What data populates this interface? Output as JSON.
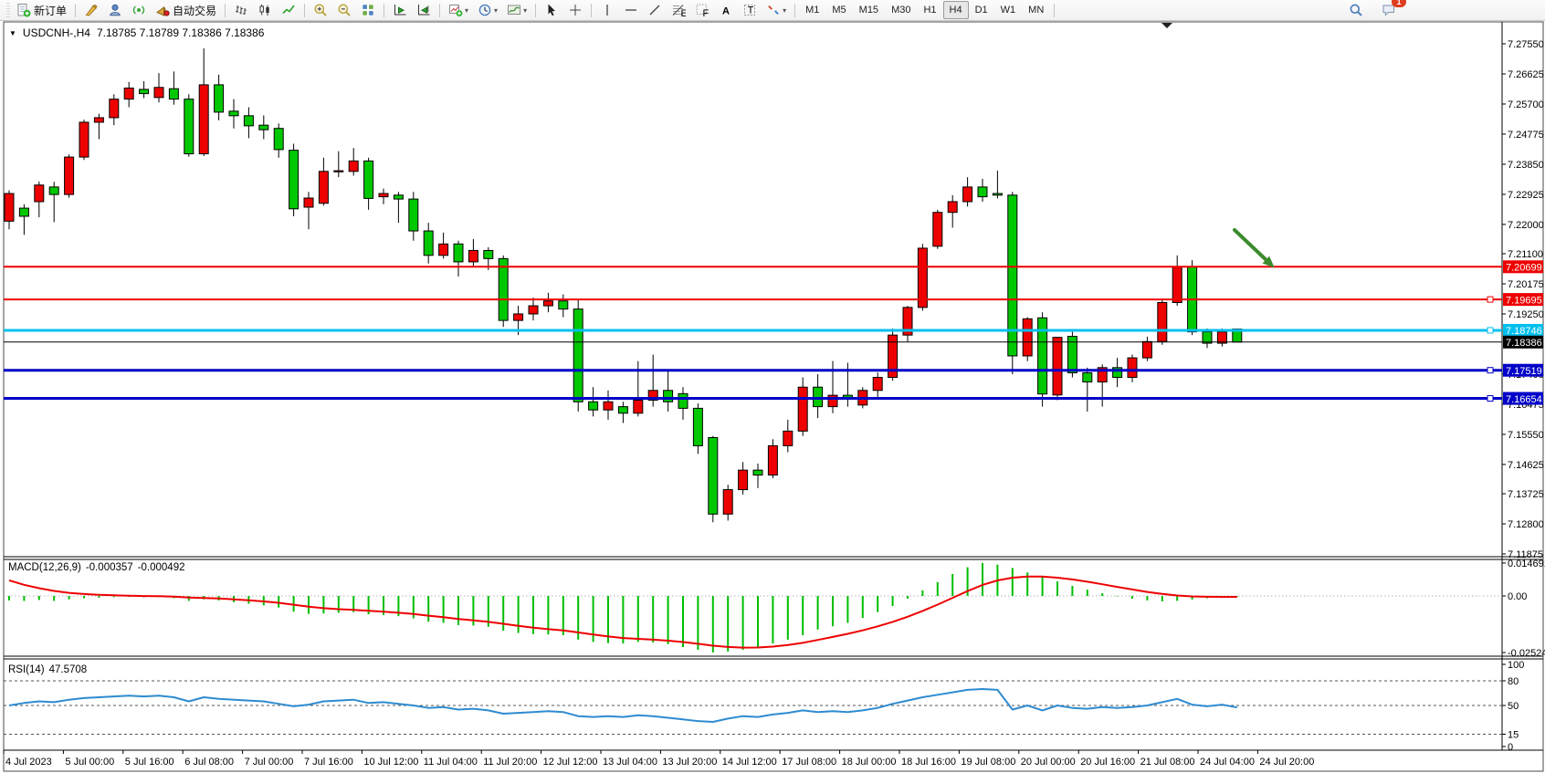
{
  "toolbar": {
    "groups": [
      {
        "items": [
          {
            "name": "new-order-button",
            "icon": "new-order-icon",
            "label": "新订单"
          }
        ]
      },
      {
        "items": [
          {
            "name": "metaeditor-button",
            "icon": "editor-icon"
          },
          {
            "name": "community-button",
            "icon": "community-icon"
          },
          {
            "name": "signals-button",
            "icon": "signals-icon"
          },
          {
            "name": "autotrading-button",
            "icon": "autotrading-icon",
            "label": "自动交易"
          }
        ]
      },
      {
        "items": [
          {
            "name": "bar-chart-button",
            "icon": "bar-chart-icon"
          },
          {
            "name": "candlestick-chart-button",
            "icon": "candles-icon"
          },
          {
            "name": "line-chart-button",
            "icon": "line-chart-icon"
          }
        ]
      },
      {
        "items": [
          {
            "name": "zoom-in-button",
            "icon": "zoom-in-icon"
          },
          {
            "name": "zoom-out-button",
            "icon": "zoom-out-icon"
          },
          {
            "name": "tile-windows-button",
            "icon": "tile-windows-icon"
          }
        ]
      },
      {
        "items": [
          {
            "name": "auto-scroll-button",
            "icon": "auto-scroll-icon"
          },
          {
            "name": "chart-shift-button",
            "icon": "chart-shift-icon"
          }
        ]
      },
      {
        "items": [
          {
            "name": "new-chart-button",
            "icon": "new-chart-icon",
            "dropdown": true
          },
          {
            "name": "periods-button",
            "icon": "clock-icon",
            "dropdown": true
          },
          {
            "name": "templates-button",
            "icon": "templates-icon",
            "dropdown": true
          }
        ]
      },
      {
        "items": [
          {
            "name": "cursor-button",
            "icon": "cursor-icon"
          },
          {
            "name": "crosshair-button",
            "icon": "crosshair-icon"
          }
        ]
      },
      {
        "items": [
          {
            "name": "vertical-line-button",
            "icon": "vline-icon"
          },
          {
            "name": "horizontal-line-button",
            "icon": "hline-icon"
          },
          {
            "name": "trendline-button",
            "icon": "trendline-icon"
          },
          {
            "name": "fibonacci-button",
            "icon": "fibonacci-icon"
          },
          {
            "name": "equidistant-grid-button",
            "icon": "grid-f-icon"
          },
          {
            "name": "text-button",
            "icon": "text-a-icon"
          },
          {
            "name": "text-label-button",
            "icon": "label-t-icon"
          },
          {
            "name": "arrows-button",
            "icon": "arrows-icon",
            "dropdown": true
          }
        ]
      }
    ],
    "timeframes": [
      "M1",
      "M5",
      "M15",
      "M30",
      "H1",
      "H4",
      "D1",
      "W1",
      "MN"
    ],
    "active_timeframe": "H4",
    "right_icons": [
      {
        "name": "search-button",
        "icon": "search-icon"
      },
      {
        "name": "chat-button",
        "icon": "chat-icon"
      }
    ],
    "notifications": "1"
  },
  "chart": {
    "title": "USDCNH-,H4",
    "ohlc_text": "7.18785 7.18789 7.18386 7.18386",
    "ohlc": {
      "open": "7.18785",
      "high": "7.18789",
      "low": "7.18386",
      "close": "7.18386"
    }
  },
  "chart_data": [
    {
      "type": "candlestick",
      "symbol": "USDCNH-",
      "timeframe": "H4",
      "bull_color": "#EE0000",
      "bear_color": "#00C800",
      "y_axis_ticks": [
        {
          "label": "7.27550",
          "price": 7.2755
        },
        {
          "label": "7.26625",
          "price": 7.26625
        },
        {
          "label": "7.25700",
          "price": 7.257
        },
        {
          "label": "7.24775",
          "price": 7.24775
        },
        {
          "label": "7.23850",
          "price": 7.2385
        },
        {
          "label": "7.22925",
          "price": 7.22925
        },
        {
          "label": "7.22000",
          "price": 7.22
        },
        {
          "label": "7.21100",
          "price": 7.211
        },
        {
          "label": "7.20175",
          "price": 7.20175
        },
        {
          "label": "7.19250",
          "price": 7.1925
        },
        {
          "label": "7.17400",
          "price": 7.174
        },
        {
          "label": "7.16475",
          "price": 7.16475
        },
        {
          "label": "7.15550",
          "price": 7.1555
        },
        {
          "label": "7.14625",
          "price": 7.14625
        },
        {
          "label": "7.13725",
          "price": 7.13725
        },
        {
          "label": "7.12800",
          "price": 7.128
        },
        {
          "label": "7.11875",
          "price": 7.11875
        }
      ],
      "x_axis_labels": [
        "4 Jul 2023",
        "5 Jul 00:00",
        "5 Jul 16:00",
        "6 Jul 08:00",
        "7 Jul 00:00",
        "7 Jul 16:00",
        "10 Jul 12:00",
        "11 Jul 04:00",
        "11 Jul 20:00",
        "12 Jul 12:00",
        "13 Jul 04:00",
        "13 Jul 20:00",
        "14 Jul 12:00",
        "17 Jul 08:00",
        "18 Jul 00:00",
        "18 Jul 16:00",
        "19 Jul 08:00",
        "20 Jul 00:00",
        "20 Jul 16:00",
        "21 Jul 08:00",
        "24 Jul 04:00",
        "24 Jul 20:00"
      ],
      "levels": [
        {
          "price": 7.20699,
          "badge": "7.20699",
          "color": "#EE0000",
          "width": 2,
          "handle": false
        },
        {
          "price": 7.19695,
          "badge": "7.19695",
          "color": "#EE0000",
          "width": 2,
          "handle": true
        },
        {
          "price": 7.18746,
          "badge": "7.18746",
          "color": "#00C0EE",
          "width": 3,
          "handle": true
        },
        {
          "price": 7.18386,
          "badge": "7.18386",
          "color": "#000000",
          "width": 1,
          "handle": false
        },
        {
          "price": 7.17519,
          "badge": "7.17519",
          "color": "#0000C8",
          "width": 3,
          "handle": true
        },
        {
          "price": 7.16654,
          "badge": "7.16654",
          "color": "#0000C8",
          "width": 3,
          "handle": true
        }
      ],
      "arrow_annotation": {
        "from": [
          1352,
          252
        ],
        "to": [
          1390,
          288
        ],
        "color": "#3C8B2E"
      },
      "candles": [
        [
          7.221,
          7.2305,
          7.2185,
          7.2295
        ],
        [
          7.225,
          7.2262,
          7.2168,
          7.2225
        ],
        [
          7.227,
          7.2332,
          7.2222,
          7.2321
        ],
        [
          7.2315,
          7.2331,
          7.2207,
          7.2292
        ],
        [
          7.2292,
          7.2415,
          7.2282,
          7.2407
        ],
        [
          7.2407,
          7.2522,
          7.2398,
          7.2514
        ],
        [
          7.2514,
          7.254,
          7.2462,
          7.2528
        ],
        [
          7.2528,
          7.26,
          7.2505,
          7.2585
        ],
        [
          7.2585,
          7.2638,
          7.256,
          7.2619
        ],
        [
          7.2615,
          7.264,
          7.2588,
          7.2602
        ],
        [
          7.259,
          7.2665,
          7.2575,
          7.2621
        ],
        [
          7.2617,
          7.267,
          7.2568,
          7.2585
        ],
        [
          7.2585,
          7.26,
          7.2408,
          7.2417
        ],
        [
          7.2417,
          7.2741,
          7.241,
          7.2629
        ],
        [
          7.2629,
          7.266,
          7.252,
          7.2545
        ],
        [
          7.2548,
          7.2585,
          7.2495,
          7.2534
        ],
        [
          7.2534,
          7.256,
          7.2465,
          7.2503
        ],
        [
          7.2505,
          7.2535,
          7.2462,
          7.2491
        ],
        [
          7.2495,
          7.251,
          7.2405,
          7.243
        ],
        [
          7.2428,
          7.2448,
          7.2225,
          7.2248
        ],
        [
          7.2253,
          7.23,
          7.2185,
          7.2281
        ],
        [
          7.2265,
          7.2405,
          7.2258,
          7.2363
        ],
        [
          7.2363,
          7.2425,
          7.2345,
          7.2365
        ],
        [
          7.2363,
          7.2435,
          7.235,
          7.2395
        ],
        [
          7.2395,
          7.2405,
          7.2245,
          7.228
        ],
        [
          7.2285,
          7.231,
          7.2262,
          7.2295
        ],
        [
          7.229,
          7.23,
          7.2205,
          7.2278
        ],
        [
          7.2278,
          7.23,
          7.215,
          7.218
        ],
        [
          7.218,
          7.2205,
          7.208,
          7.2105
        ],
        [
          7.2105,
          7.2175,
          7.2095,
          7.214
        ],
        [
          7.214,
          7.215,
          7.204,
          7.2085
        ],
        [
          7.2085,
          7.2155,
          7.207,
          7.212
        ],
        [
          7.212,
          7.213,
          7.206,
          7.2095
        ],
        [
          7.2095,
          7.2105,
          7.1885,
          7.1905
        ],
        [
          7.1905,
          7.195,
          7.186,
          7.1925
        ],
        [
          7.1925,
          7.1975,
          7.1905,
          7.195
        ],
        [
          7.195,
          7.199,
          7.193,
          7.1965
        ],
        [
          7.1965,
          7.1985,
          7.1915,
          7.194
        ],
        [
          7.194,
          7.197,
          7.1625,
          7.1655
        ],
        [
          7.1655,
          7.17,
          7.161,
          7.163
        ],
        [
          7.163,
          7.169,
          7.16,
          7.1655
        ],
        [
          7.164,
          7.1655,
          7.159,
          7.162
        ],
        [
          7.162,
          7.178,
          7.161,
          7.166
        ],
        [
          7.166,
          7.18,
          7.164,
          7.169
        ],
        [
          7.169,
          7.175,
          7.1625,
          7.1655
        ],
        [
          7.168,
          7.17,
          7.16,
          7.1635
        ],
        [
          7.1635,
          7.165,
          7.1495,
          7.152
        ],
        [
          7.1545,
          7.155,
          7.1285,
          7.131
        ],
        [
          7.131,
          7.14,
          7.129,
          7.1385
        ],
        [
          7.1385,
          7.147,
          7.137,
          7.1445
        ],
        [
          7.1445,
          7.1465,
          7.139,
          7.143
        ],
        [
          7.143,
          7.154,
          7.142,
          7.152
        ],
        [
          7.152,
          7.16,
          7.15,
          7.1565
        ],
        [
          7.1565,
          7.173,
          7.155,
          7.17
        ],
        [
          7.17,
          7.174,
          7.1605,
          7.164
        ],
        [
          7.164,
          7.178,
          7.162,
          7.1675
        ],
        [
          7.1675,
          7.1775,
          7.164,
          7.1665
        ],
        [
          7.1645,
          7.17,
          7.1635,
          7.169
        ],
        [
          7.169,
          7.1745,
          7.167,
          7.173
        ],
        [
          7.173,
          7.188,
          7.172,
          7.186
        ],
        [
          7.186,
          7.195,
          7.184,
          7.1945
        ],
        [
          7.1945,
          7.214,
          7.1935,
          7.2127
        ],
        [
          7.2133,
          7.2245,
          7.2125,
          7.2237
        ],
        [
          7.2237,
          7.229,
          7.219,
          7.227
        ],
        [
          7.227,
          7.2345,
          7.2255,
          7.2315
        ],
        [
          7.2315,
          7.234,
          7.227,
          7.2285
        ],
        [
          7.2295,
          7.2365,
          7.228,
          7.229
        ],
        [
          7.229,
          7.23,
          7.174,
          7.1796
        ],
        [
          7.1796,
          7.1915,
          7.178,
          7.191
        ],
        [
          7.1913,
          7.193,
          7.164,
          7.1679
        ],
        [
          7.1676,
          7.1855,
          7.166,
          7.1853
        ],
        [
          7.1856,
          7.187,
          7.173,
          7.1744
        ],
        [
          7.1744,
          7.176,
          7.1625,
          7.1716
        ],
        [
          7.1716,
          7.177,
          7.164,
          7.176
        ],
        [
          7.176,
          7.179,
          7.17,
          7.173
        ],
        [
          7.173,
          7.18,
          7.1715,
          7.179
        ],
        [
          7.179,
          7.1855,
          7.178,
          7.184
        ],
        [
          7.184,
          7.197,
          7.183,
          7.196
        ],
        [
          7.196,
          7.2105,
          7.195,
          7.207
        ],
        [
          7.207,
          7.209,
          7.186,
          7.187
        ],
        [
          7.187,
          7.188,
          7.182,
          7.1835
        ],
        [
          7.1835,
          7.188,
          7.1825,
          7.187
        ],
        [
          7.18785,
          7.18789,
          7.18386,
          7.18386
        ]
      ]
    },
    {
      "type": "bar",
      "label": "MACD(12,26,9)",
      "macd_value": "-0.000357",
      "signal_value": "-0.000492",
      "histogram_color": "#00BE00",
      "signal_color": "#EE0000",
      "signal_alpha": 0.22,
      "signal_seed": 0.0095,
      "y_axis_ticks": [
        {
          "label": "0.014691",
          "v": 0.014691
        },
        {
          "label": "0.00",
          "v": 0
        },
        {
          "label": "-0.02524",
          "v": -0.02524
        }
      ],
      "histogram": [
        -0.002,
        -0.0022,
        -0.0018,
        -0.0022,
        -0.0015,
        -0.001,
        -0.0008,
        -0.0005,
        -0.0004,
        -0.0006,
        -0.0005,
        -0.001,
        -0.0022,
        -0.0015,
        -0.002,
        -0.0028,
        -0.0035,
        -0.0042,
        -0.0052,
        -0.007,
        -0.008,
        -0.0078,
        -0.0075,
        -0.0072,
        -0.0082,
        -0.0085,
        -0.009,
        -0.01,
        -0.0115,
        -0.012,
        -0.013,
        -0.0132,
        -0.0138,
        -0.0155,
        -0.0165,
        -0.017,
        -0.0172,
        -0.0175,
        -0.0195,
        -0.0205,
        -0.021,
        -0.0212,
        -0.0205,
        -0.0208,
        -0.0215,
        -0.0228,
        -0.024,
        -0.0252,
        -0.0248,
        -0.024,
        -0.0228,
        -0.0212,
        -0.0195,
        -0.0175,
        -0.015,
        -0.0135,
        -0.012,
        -0.0098,
        -0.0072,
        -0.0045,
        -0.0012,
        0.0025,
        0.0062,
        0.0098,
        0.0128,
        0.0147,
        0.014,
        0.0125,
        0.0105,
        0.0085,
        0.0065,
        0.0045,
        0.0028,
        0.0012,
        -0.0002,
        -0.0012,
        -0.002,
        -0.0024,
        -0.0022,
        -0.0016,
        -0.001,
        -0.0006,
        -0.000357
      ]
    },
    {
      "type": "line",
      "label": "RSI(14)",
      "value": "47.5708",
      "line_color": "#2E8BD0",
      "y_axis_ticks": [
        {
          "label": "100",
          "v": 100
        },
        {
          "label": "80",
          "v": 80
        },
        {
          "label": "50",
          "v": 50
        },
        {
          "label": "15",
          "v": 15
        },
        {
          "label": "0",
          "v": 0
        }
      ],
      "dashed_levels": [
        80,
        50,
        15
      ],
      "values": [
        50,
        53,
        55,
        54,
        57,
        59,
        60,
        61,
        62,
        61,
        62,
        60,
        55,
        60,
        58,
        57,
        56,
        55,
        52,
        49,
        51,
        55,
        56,
        57,
        53,
        54,
        52,
        50,
        47,
        48,
        45,
        46,
        44,
        40,
        41,
        42,
        43,
        42,
        37,
        36,
        37,
        36,
        38,
        37,
        35,
        33,
        31,
        30,
        34,
        37,
        36,
        39,
        41,
        44,
        42,
        43,
        42,
        44,
        47,
        52,
        56,
        60,
        63,
        66,
        69,
        70,
        69,
        45,
        50,
        44,
        50,
        47,
        46,
        48,
        47,
        48,
        50,
        54,
        58,
        51,
        49,
        51,
        47.5708
      ]
    }
  ]
}
